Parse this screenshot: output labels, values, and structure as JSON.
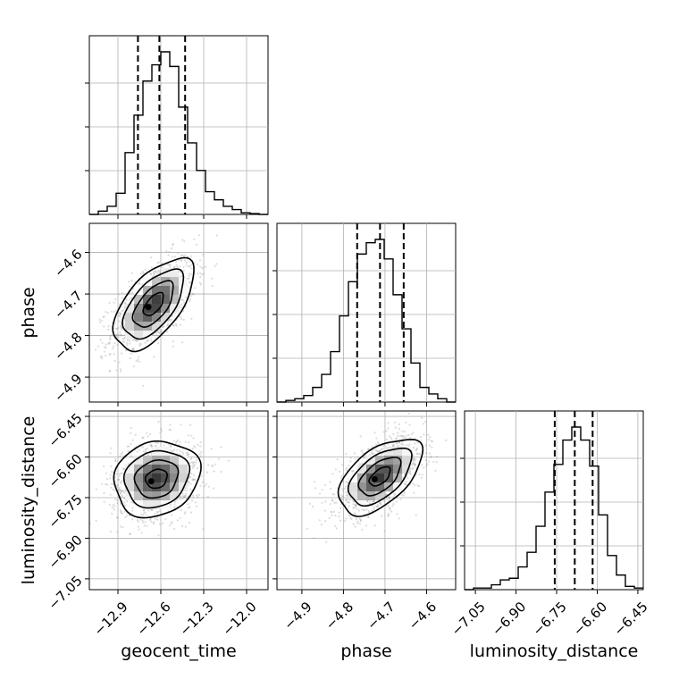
{
  "chart_data": {
    "type": "corner",
    "parameters": [
      "geocent_time",
      "phase",
      "luminosity_distance"
    ],
    "axis_labels": {
      "x": [
        "geocent_time",
        "phase",
        "luminosity_distance"
      ],
      "y": [
        "phase",
        "luminosity_distance"
      ]
    },
    "ranges": {
      "geocent_time": [
        -13.1,
        -11.85
      ],
      "phase": [
        -4.96,
        -4.53
      ],
      "luminosity_distance": [
        -7.09,
        -6.43
      ]
    },
    "ticks": {
      "geocent_time": [
        -12.9,
        -12.6,
        -12.3,
        -12.0
      ],
      "phase": [
        -4.9,
        -4.8,
        -4.7,
        -4.6
      ],
      "luminosity_distance": [
        -7.05,
        -6.9,
        -6.75,
        -6.6,
        -6.45
      ]
    },
    "tick_labels": {
      "geocent_time": [
        "−12.9",
        "−12.6",
        "−12.3",
        "−12.0"
      ],
      "phase": [
        "−4.9",
        "−4.8",
        "−4.7",
        "−4.6"
      ],
      "luminosity_distance": [
        "−7.05",
        "−6.90",
        "−6.75",
        "−6.60",
        "−6.45"
      ]
    },
    "quantiles": {
      "geocent_time": [
        -12.76,
        -12.61,
        -12.43
      ],
      "phase": [
        -4.767,
        -4.712,
        -4.655
      ],
      "luminosity_distance": [
        -6.757,
        -6.683,
        -6.617
      ]
    },
    "histograms": {
      "geocent_time": {
        "edges": [
          -13.1,
          -13.0375,
          -12.975,
          -12.9125,
          -12.85,
          -12.7875,
          -12.725,
          -12.6625,
          -12.6,
          -12.5375,
          -12.475,
          -12.4125,
          -12.35,
          -12.2875,
          -12.225,
          -12.1625,
          -12.1,
          -12.0375,
          -11.975,
          -11.9125,
          -11.85
        ],
        "counts": [
          0,
          0.02,
          0.05,
          0.13,
          0.38,
          0.61,
          0.82,
          0.92,
          1.0,
          0.91,
          0.66,
          0.44,
          0.27,
          0.14,
          0.09,
          0.05,
          0.03,
          0.01,
          0.005,
          0
        ]
      },
      "phase": {
        "edges": [
          -4.96,
          -4.9385,
          -4.917,
          -4.8955,
          -4.874,
          -4.8525,
          -4.831,
          -4.8095,
          -4.788,
          -4.7665,
          -4.745,
          -4.7235,
          -4.702,
          -4.6805,
          -4.659,
          -4.6375,
          -4.616,
          -4.5945,
          -4.573,
          -4.5515,
          -4.53
        ],
        "counts": [
          0,
          0.01,
          0.02,
          0.04,
          0.09,
          0.17,
          0.31,
          0.53,
          0.74,
          0.91,
          0.98,
          1.0,
          0.88,
          0.66,
          0.45,
          0.24,
          0.09,
          0.05,
          0.02,
          0
        ]
      },
      "luminosity_distance": {
        "edges": [
          -7.09,
          -7.057,
          -7.024,
          -6.991,
          -6.958,
          -6.925,
          -6.892,
          -6.859,
          -6.826,
          -6.793,
          -6.76,
          -6.727,
          -6.694,
          -6.661,
          -6.628,
          -6.595,
          -6.562,
          -6.529,
          -6.496,
          -6.463,
          -6.43
        ],
        "counts": [
          0,
          0.01,
          0.01,
          0.03,
          0.06,
          0.07,
          0.14,
          0.23,
          0.39,
          0.6,
          0.77,
          0.92,
          1.0,
          0.92,
          0.76,
          0.46,
          0.21,
          0.09,
          0.02,
          0.01
        ]
      }
    },
    "pairs": [
      {
        "x": "geocent_time",
        "y": "phase",
        "peak": [
          -12.65,
          -4.725
        ],
        "spread_x": 0.14,
        "spread_y": 0.055,
        "correlation": 0.6
      },
      {
        "x": "geocent_time",
        "y": "luminosity_distance",
        "peak": [
          -12.63,
          -6.68
        ],
        "spread_x": 0.15,
        "spread_y": 0.07,
        "correlation": 0.15
      },
      {
        "x": "phase",
        "y": "luminosity_distance",
        "peak": [
          -4.712,
          -6.672
        ],
        "spread_x": 0.05,
        "spread_y": 0.07,
        "correlation": 0.55
      }
    ],
    "contour_levels": [
      0.5,
      1.0,
      1.5,
      2.0
    ],
    "grid": true,
    "colors": {
      "line": "#000000",
      "density": "#808080",
      "grid": "#b0b0b0",
      "samples": "#9a9a9a"
    }
  }
}
